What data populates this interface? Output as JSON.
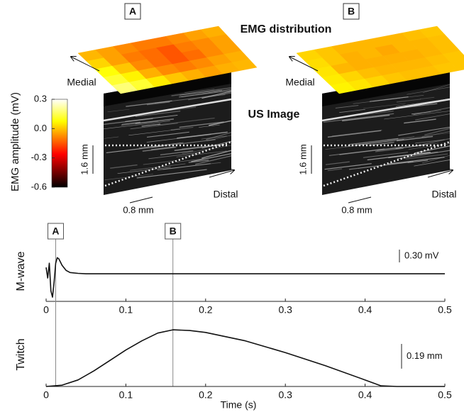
{
  "chart_data": [
    {
      "type": "heatmap",
      "title": "EMG distribution",
      "subtitle": "US Image",
      "colormap": "hot",
      "colorbar_label": "EMG amplitude (mV)",
      "clim": [
        -0.6,
        0.3
      ],
      "cticks": [
        0.3,
        {
          "value": 0,
          "label": "0.0"
        },
        -0.3,
        -0.6
      ],
      "panels": [
        {
          "label": "A",
          "medial": "Medial",
          "distal": "Distal",
          "scale_v": "1.6 mm",
          "scale_h": "0.8 mm",
          "grid": [
            [
              -0.02,
              -0.05,
              -0.08,
              -0.1,
              -0.1,
              -0.08,
              -0.05,
              -0.03
            ],
            [
              0.02,
              -0.05,
              -0.1,
              -0.12,
              -0.15,
              -0.1,
              -0.08,
              -0.05
            ],
            [
              0.08,
              0.0,
              -0.08,
              -0.12,
              -0.15,
              -0.12,
              -0.08,
              -0.05
            ],
            [
              0.12,
              0.06,
              -0.03,
              -0.08,
              -0.1,
              -0.08,
              -0.05,
              -0.03
            ],
            [
              0.18,
              0.12,
              0.05,
              0.0,
              -0.03,
              -0.05,
              -0.03,
              -0.02
            ]
          ]
        },
        {
          "label": "B",
          "medial": "Medial",
          "distal": "Distal",
          "scale_v": "1.6 mm",
          "scale_h": "0.8 mm",
          "grid": [
            [
              0.02,
              0.0,
              -0.02,
              -0.02,
              -0.02,
              -0.02,
              -0.01,
              0.0
            ],
            [
              0.03,
              0.0,
              -0.03,
              -0.02,
              -0.04,
              -0.02,
              -0.02,
              -0.01
            ],
            [
              0.04,
              -0.02,
              -0.03,
              -0.03,
              -0.03,
              -0.03,
              -0.02,
              -0.01
            ],
            [
              0.05,
              0.02,
              -0.01,
              -0.02,
              -0.02,
              -0.02,
              -0.01,
              0.0
            ],
            [
              0.06,
              0.04,
              0.02,
              0.0,
              -0.01,
              -0.01,
              0.0,
              0.0
            ]
          ]
        }
      ]
    },
    {
      "type": "line",
      "ylabel": "M-wave",
      "xlim": [
        0,
        0.5
      ],
      "ylim": [
        -0.65,
        0.77
      ],
      "xticks": [
        0,
        0.1,
        0.2,
        0.3,
        0.4,
        0.5
      ],
      "color": "#111111",
      "scale_bar": {
        "value": 0.3,
        "label": "0.30 mV"
      },
      "markers": [
        {
          "label": "A",
          "x": 0.012
        },
        {
          "label": "B",
          "x": 0.159
        }
      ],
      "x": [
        0,
        0.002,
        0.004,
        0.006,
        0.008,
        0.01,
        0.012,
        0.014,
        0.016,
        0.02,
        0.025,
        0.03,
        0.04,
        0.05,
        0.1,
        0.5
      ],
      "values": [
        0.15,
        -0.1,
        0.25,
        -0.4,
        -0.55,
        -0.2,
        0.25,
        0.38,
        0.35,
        0.2,
        0.08,
        0.03,
        0.01,
        0,
        0,
        0
      ]
    },
    {
      "type": "line",
      "ylabel": "Twitch",
      "xlabel": "Time (s)",
      "xlim": [
        0,
        0.5
      ],
      "ylim": [
        0,
        0.49
      ],
      "xticks": [
        0,
        0.1,
        0.2,
        0.3,
        0.4,
        0.5
      ],
      "color": "#111111",
      "scale_bar": {
        "value": 0.19,
        "label": "0.19 mm"
      },
      "x": [
        0,
        0.02,
        0.04,
        0.06,
        0.08,
        0.1,
        0.12,
        0.14,
        0.159,
        0.18,
        0.2,
        0.25,
        0.3,
        0.35,
        0.4,
        0.42,
        0.44,
        0.5
      ],
      "values": [
        0,
        0.01,
        0.05,
        0.12,
        0.2,
        0.28,
        0.35,
        0.41,
        0.435,
        0.43,
        0.415,
        0.35,
        0.26,
        0.16,
        0.05,
        0.005,
        0,
        0
      ]
    }
  ]
}
